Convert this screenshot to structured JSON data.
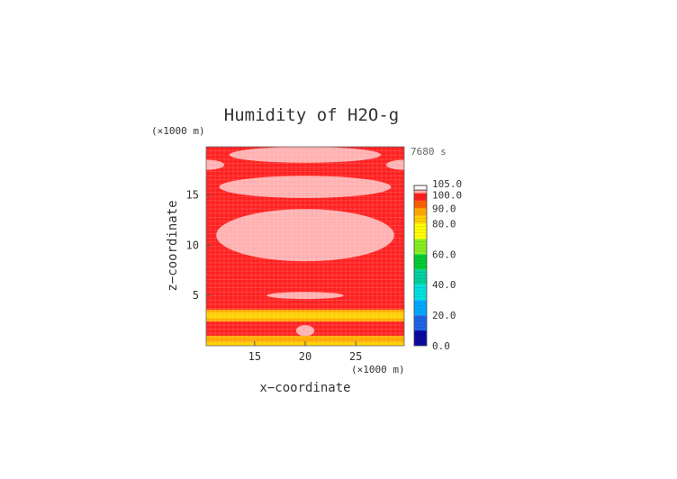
{
  "chart_data": {
    "type": "heatmap",
    "title": "Humidity of H2O-g",
    "time_label": "7680 s",
    "xlabel": "x−coordinate",
    "ylabel": "z−coordinate",
    "x_unit": "(×1000 m)",
    "y_unit": "(×1000 m)",
    "xlim": [
      10.2,
      29.8
    ],
    "ylim": [
      0,
      19.8
    ],
    "x_ticks": [
      15,
      20,
      25
    ],
    "y_ticks": [
      5,
      10,
      15
    ],
    "colorbar": {
      "levels": [
        0,
        10,
        20,
        30,
        40,
        50,
        60,
        70,
        80,
        85,
        90,
        95,
        100,
        105
      ],
      "labels": [
        "0.0",
        "20.0",
        "40.0",
        "60.0",
        "80.0",
        "90.0",
        "100.0",
        "105.0"
      ],
      "label_values": [
        0,
        20,
        40,
        60,
        80,
        90,
        100,
        105
      ],
      "colors": [
        "#0a0aa0",
        "#1e64e6",
        "#00aaff",
        "#00e0e0",
        "#00d0a0",
        "#00cc33",
        "#88ee22",
        "#ffff00",
        "#ffd000",
        "#ffaa00",
        "#ff6000",
        "#ff2020",
        "#ffb0b0"
      ]
    },
    "fields": [
      {
        "level": 100,
        "description": "saturated (pink) regions",
        "regions": [
          {
            "cx": 20.0,
            "cz": 19.0,
            "rx": 7.5,
            "rz": 0.8
          },
          {
            "cx": 10.2,
            "cz": 18.0,
            "rx": 1.8,
            "rz": 0.5
          },
          {
            "cx": 29.8,
            "cz": 18.0,
            "rx": 1.8,
            "rz": 0.5
          },
          {
            "cx": 20.0,
            "cz": 15.8,
            "rx": 8.5,
            "rz": 1.1
          },
          {
            "cx": 20.0,
            "cz": 11.0,
            "rx": 8.8,
            "rz": 2.6
          },
          {
            "cx": 20.0,
            "cz": 5.0,
            "rx": 3.8,
            "rz": 0.35
          },
          {
            "cx": 20.0,
            "cz": 1.5,
            "rx": 0.9,
            "rz": 0.55
          }
        ]
      },
      {
        "level": 85,
        "description": "orange-yellow band",
        "z_range": [
          2.4,
          3.6
        ]
      },
      {
        "level": 80,
        "description": "yellow band",
        "z_range": [
          2.7,
          3.3
        ]
      },
      {
        "level": 85,
        "description": "orange lower layer",
        "z_range": [
          0.0,
          1.0
        ]
      },
      {
        "level": 80,
        "description": "yellow near ground",
        "z_range": [
          0.0,
          0.35
        ]
      }
    ]
  }
}
